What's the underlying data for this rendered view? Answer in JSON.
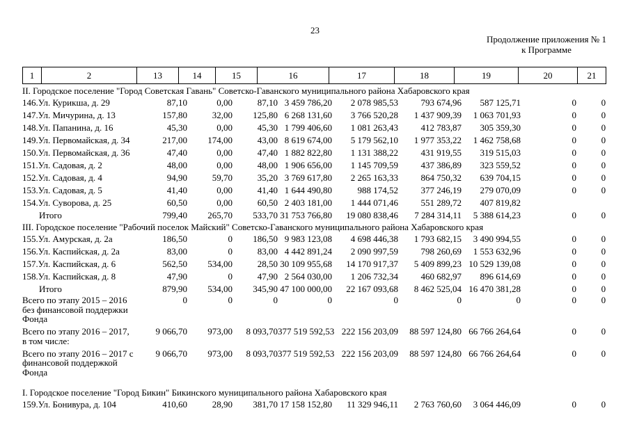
{
  "page": {
    "number": "23",
    "continuation_line1": "Продолжение приложения № 1",
    "continuation_line2": "к Программе"
  },
  "table": {
    "column_numbers": [
      "1",
      "2",
      "13",
      "14",
      "15",
      "16",
      "17",
      "18",
      "19",
      "20",
      "21"
    ],
    "rows": [
      {
        "type": "section",
        "label": "II. Городское поселение \"Город Советская Гавань\" Советско-Гаванского муниципального района Хабаровского края"
      },
      {
        "type": "data",
        "label": "146.Ул. Курикша, д. 29",
        "values": [
          "87,10",
          "0,00",
          "87,10",
          "3 459 786,20",
          "2 078 985,53",
          "793 674,96",
          "587 125,71",
          "0",
          "0"
        ]
      },
      {
        "type": "data",
        "label": "147.Ул. Мичурина, д. 13",
        "values": [
          "157,80",
          "32,00",
          "125,80",
          "6 268 131,60",
          "3 766 520,28",
          "1 437 909,39",
          "1 063 701,93",
          "0",
          "0"
        ]
      },
      {
        "type": "data",
        "label": "148.Ул. Папанина, д. 16",
        "values": [
          "45,30",
          "0,00",
          "45,30",
          "1 799 406,60",
          "1 081 263,43",
          "412 783,87",
          "305 359,30",
          "0",
          "0"
        ]
      },
      {
        "type": "data",
        "label": "149.Ул. Первомайская, д. 34",
        "values": [
          "217,00",
          "174,00",
          "43,00",
          "8 619 674,00",
          "5 179 562,10",
          "1 977 353,22",
          "1 462 758,68",
          "0",
          "0"
        ]
      },
      {
        "type": "data",
        "label": "150.Ул. Первомайская, д. 36",
        "values": [
          "47,40",
          "0,00",
          "47,40",
          "1 882 822,80",
          "1 131 388,22",
          "431 919,55",
          "319 515,03",
          "0",
          "0"
        ]
      },
      {
        "type": "data",
        "label": "151.Ул. Садовая, д. 2",
        "values": [
          "48,00",
          "0,00",
          "48,00",
          "1 906 656,00",
          "1 145 709,59",
          "437 386,89",
          "323 559,52",
          "0",
          "0"
        ]
      },
      {
        "type": "data",
        "label": "152.Ул. Садовая, д. 4",
        "values": [
          "94,90",
          "59,70",
          "35,20",
          "3 769 617,80",
          "2 265 163,33",
          "864 750,32",
          "639 704,15",
          "0",
          "0"
        ]
      },
      {
        "type": "data",
        "label": "153.Ул. Садовая, д. 5",
        "values": [
          "41,40",
          "0,00",
          "41,40",
          "1 644 490,80",
          "988 174,52",
          "377 246,19",
          "279 070,09",
          "0",
          "0"
        ]
      },
      {
        "type": "data",
        "label": "154.Ул. Суворова, д. 25",
        "values": [
          "60,50",
          "0,00",
          "60,50",
          "2 403 181,00",
          "1 444 071,46",
          "551 289,72",
          "407 819,82",
          "",
          ""
        ]
      },
      {
        "type": "total",
        "label": "Итого",
        "values": [
          "799,40",
          "265,70",
          "533,70",
          "31 753 766,80",
          "19 080 838,46",
          "7 284 314,11",
          "5 388 614,23",
          "0",
          "0"
        ]
      },
      {
        "type": "section",
        "label": "III. Городское поселение \"Рабочий поселок Майский\" Советско-Гаванского муниципального района Хабаровского края"
      },
      {
        "type": "data",
        "label": "155.Ул. Амурская, д. 2а",
        "values": [
          "186,50",
          "0",
          "186,50",
          "9 983 123,08",
          "4 698 446,38",
          "1 793 682,15",
          "3 490 994,55",
          "0",
          "0"
        ]
      },
      {
        "type": "data",
        "label": "156.Ул. Каспийская, д. 2а",
        "values": [
          "83,00",
          "0",
          "83,00",
          "4 442 891,24",
          "2 090 997,59",
          "798 260,69",
          "1 553 632,96",
          "0",
          "0"
        ]
      },
      {
        "type": "data",
        "label": "157.Ул. Каспийская, д. 6",
        "values": [
          "562,50",
          "534,00",
          "28,50",
          "30 109 955,68",
          "14 170 917,37",
          "5 409 899,23",
          "10 529 139,08",
          "0",
          "0"
        ]
      },
      {
        "type": "data",
        "label": "158.Ул. Каспийская, д. 8",
        "values": [
          "47,90",
          "0",
          "47,90",
          "2 564 030,00",
          "1 206 732,34",
          "460 682,97",
          "896 614,69",
          "0",
          "0"
        ]
      },
      {
        "type": "total",
        "label": "Итого",
        "values": [
          "879,90",
          "534,00",
          "345,90",
          "47 100 000,00",
          "22 167 093,68",
          "8 462 525,04",
          "16 470 381,28",
          "0",
          "0"
        ]
      },
      {
        "type": "summary",
        "label": "Всего по этапу 2015 – 2016 без финансовой поддержки Фонда",
        "values": [
          "0",
          "0",
          "0",
          "0",
          "0",
          "0",
          "0",
          "0",
          "0"
        ]
      },
      {
        "type": "summary",
        "label": "Всего по этапу 2016 – 2017, в том числе:",
        "values": [
          "9 066,70",
          "973,00",
          "8 093,70",
          "377 519 592,53",
          "222 156 203,09",
          "88 597 124,80",
          "66 766 264,64",
          "0",
          "0"
        ]
      },
      {
        "type": "summary",
        "label": "Всего по этапу 2016 – 2017 с финансовой поддержкой Фонда",
        "values": [
          "9 066,70",
          "973,00",
          "8 093,70",
          "377 519 592,53",
          "222 156 203,09",
          "88 597 124,80",
          "66 766 264,64",
          "0",
          "0"
        ]
      },
      {
        "type": "section",
        "gap_before": true,
        "label": "I. Городское поселение \"Город Бикин\" Бикинского муниципального района Хабаровского края"
      },
      {
        "type": "data",
        "label": "159.Ул. Бонивура, д. 104",
        "values": [
          "410,60",
          "28,90",
          "381,70",
          "17 158 152,80",
          "11 329 946,11",
          "2 763 760,60",
          "3 064 446,09",
          "0",
          "0"
        ]
      }
    ]
  }
}
